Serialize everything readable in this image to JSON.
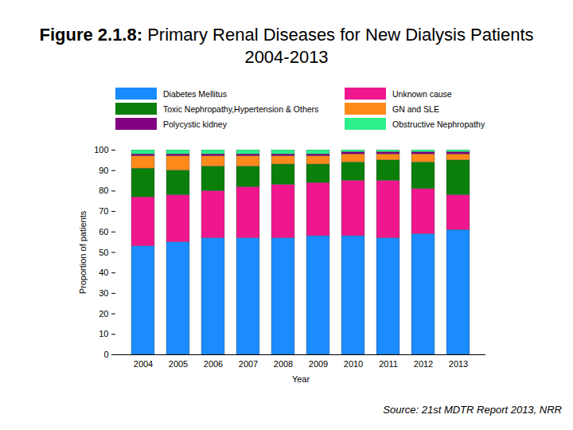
{
  "chart_data": {
    "type": "bar",
    "title": "Figure 2.1.8: Primary Renal Diseases for New Dialysis Patients 2004-2013",
    "x_label": "Year",
    "y_label": "Proportion of patients",
    "annotation": "Source: 21st MDTR Report 2013, NRR",
    "categories": [
      "2004",
      "2005",
      "2006",
      "2007",
      "2008",
      "2009",
      "2010",
      "2011",
      "2012",
      "2013"
    ],
    "stacked": true,
    "legend": "top",
    "ylim": [
      0,
      100
    ],
    "yticks": [
      0,
      10,
      20,
      30,
      40,
      50,
      60,
      70,
      80,
      90,
      100
    ],
    "series": [
      {
        "name": "Diabetes Mellitus",
        "color": "#1a8cff",
        "values": [
          53,
          55,
          57,
          57,
          57,
          58,
          58,
          57,
          59,
          61
        ]
      },
      {
        "name": "Unknown cause",
        "color": "#f0168e",
        "values": [
          24,
          23,
          23,
          25,
          26,
          26,
          27,
          28,
          22,
          17
        ]
      },
      {
        "name": "Toxic Nephropathy,Hypertension & Others",
        "color": "#0a7f0a",
        "values": [
          14,
          12,
          12,
          10,
          10,
          9,
          9,
          10,
          13,
          17
        ]
      },
      {
        "name": "GN and SLE",
        "color": "#ff8a1a",
        "values": [
          6,
          7,
          5,
          5,
          4,
          4,
          4,
          3,
          4,
          3
        ]
      },
      {
        "name": "Polycystic kidney",
        "color": "#800080",
        "values": [
          1,
          1,
          1,
          1,
          1,
          1,
          1,
          1,
          1,
          1
        ]
      },
      {
        "name": "Obstructive Nephropathy",
        "color": "#2df08a",
        "values": [
          2,
          2,
          2,
          2,
          2,
          2,
          1,
          1,
          1,
          1
        ]
      }
    ]
  }
}
